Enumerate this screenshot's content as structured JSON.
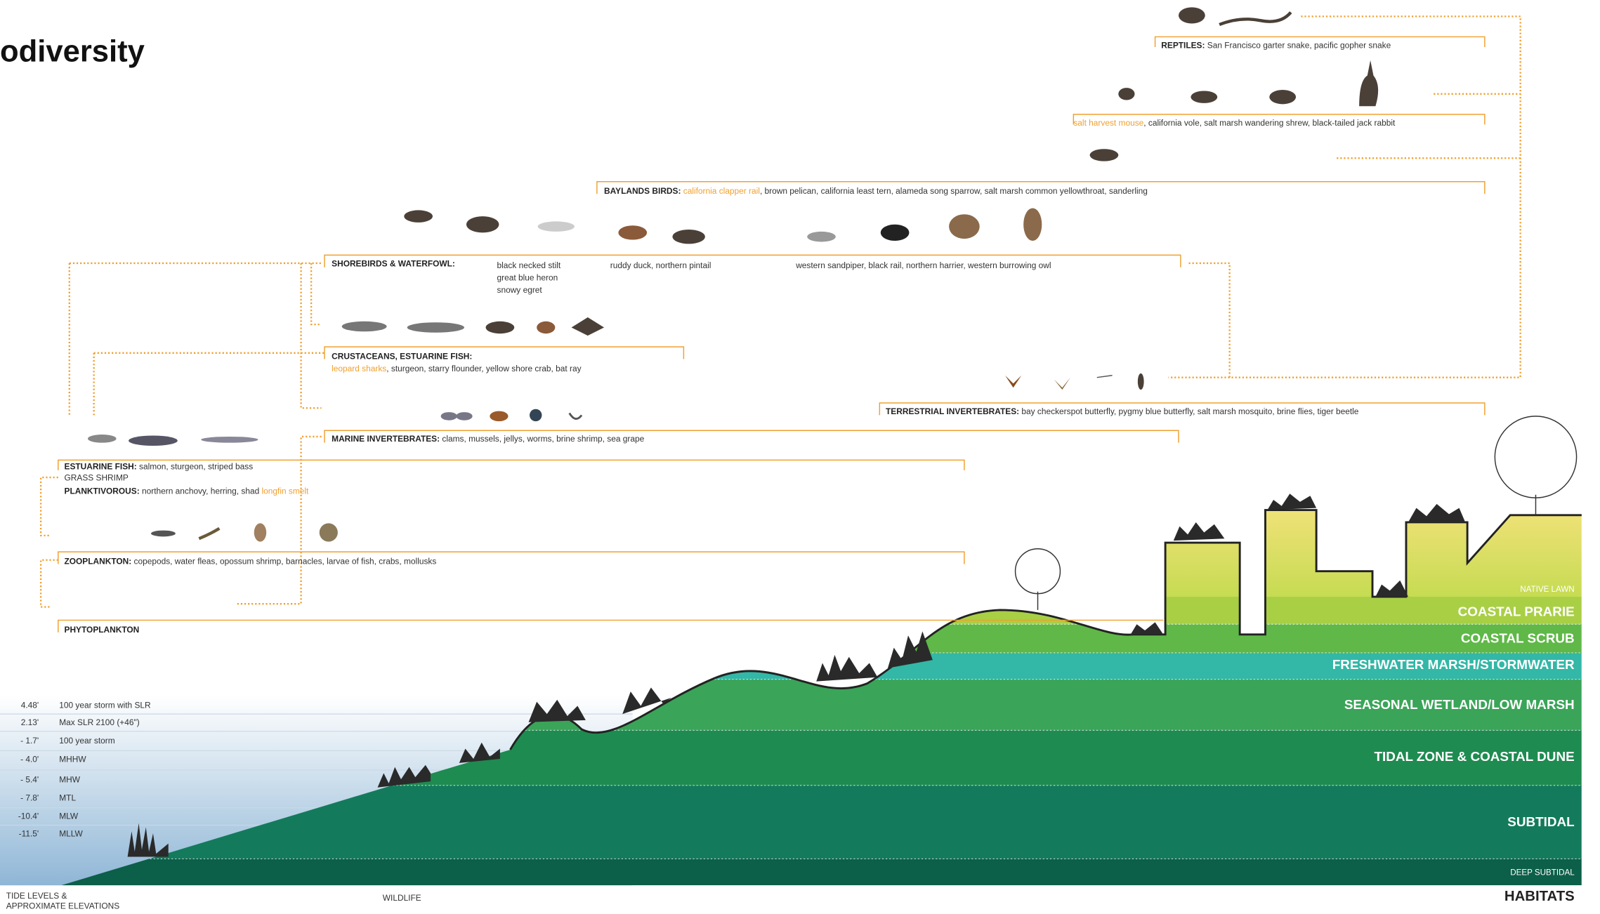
{
  "header": {
    "title": "odiversity"
  },
  "wildlife": {
    "reptiles": {
      "label": "REPTILES:",
      "species": "San Francisco garter snake, pacific gopher snake"
    },
    "mammals": {
      "highlight": "salt harvest mouse",
      "species": ", california vole, salt marsh wandering shrew, black-tailed jack rabbit"
    },
    "baylands_birds": {
      "label": "BAYLANDS BIRDS:",
      "highlight": "california clapper rail",
      "species": ", brown pelican, california least tern, alameda song sparrow, salt marsh common yellowthroat, sanderling"
    },
    "shorebirds": {
      "label": "SHOREBIRDS & WATERFOWL:",
      "columns": [
        [
          "black necked stilt",
          "great blue heron",
          "snowy egret"
        ],
        [
          "ruddy duck, northern pintail"
        ],
        [
          "western sandpiper, black rail, northern harrier, western burrowing owl"
        ]
      ]
    },
    "crustaceans": {
      "label": "CRUSTACEANS, ESTUARINE FISH:",
      "highlight": "leopard sharks",
      "species": ", sturgeon, starry flounder, yellow shore crab, bat ray"
    },
    "terrestrial_invertebrates": {
      "label": "TERRESTRIAL INVERTEBRATES:",
      "species": "bay checkerspot butterfly, pygmy blue butterfly, salt marsh mosquito, brine flies, tiger beetle"
    },
    "marine_invertebrates": {
      "label": "MARINE INVERTEBRATES:",
      "species": "clams, mussels, jellys, worms, brine shrimp, sea grape"
    },
    "estuarine_fish": {
      "label": "ESTUARINE FISH:",
      "species": "salmon, sturgeon, striped bass",
      "extra": "GRASS SHRIMP"
    },
    "planktivorous": {
      "label": "PLANKTIVOROUS:",
      "species": "northern anchovy, herring, shad",
      "highlight": "longfin smelt"
    },
    "zooplankton": {
      "label": "ZOOPLANKTON:",
      "species": "copepods, water fleas, opossum shrimp, barnacles, larvae of fish, crabs, mollusks"
    },
    "phytoplankton": {
      "label": "PHYTOPLANKTON"
    }
  },
  "tide_levels": [
    {
      "elevation": "4.48'",
      "label": "100 year storm with SLR"
    },
    {
      "elevation": "2.13'",
      "label": "Max SLR 2100 (+46\")"
    },
    {
      "elevation": "- 1.7'",
      "label": "100 year storm"
    },
    {
      "elevation": "- 4.0'",
      "label": "MHHW"
    },
    {
      "elevation": "- 5.4'",
      "label": "MHW"
    },
    {
      "elevation": "- 7.8'",
      "label": "MTL"
    },
    {
      "elevation": "-10.4'",
      "label": "MLW"
    },
    {
      "elevation": "-11.5'",
      "label": "MLLW"
    }
  ],
  "habitats": [
    "NATIVE LAWN",
    "COASTAL PRARIE",
    "COASTAL SCRUB",
    "FRESHWATER MARSH/STORMWATER",
    "SEASONAL WETLAND/LOW MARSH",
    "TIDAL ZONE & COASTAL DUNE",
    "SUBTIDAL",
    "DEEP SUBTIDAL"
  ],
  "footer": {
    "tide_title": "TIDE LEVELS &",
    "tide_subtitle": "APPROXIMATE ELEVATIONS",
    "wildlife": "WILDLIFE",
    "habitats": "HABITATS"
  }
}
